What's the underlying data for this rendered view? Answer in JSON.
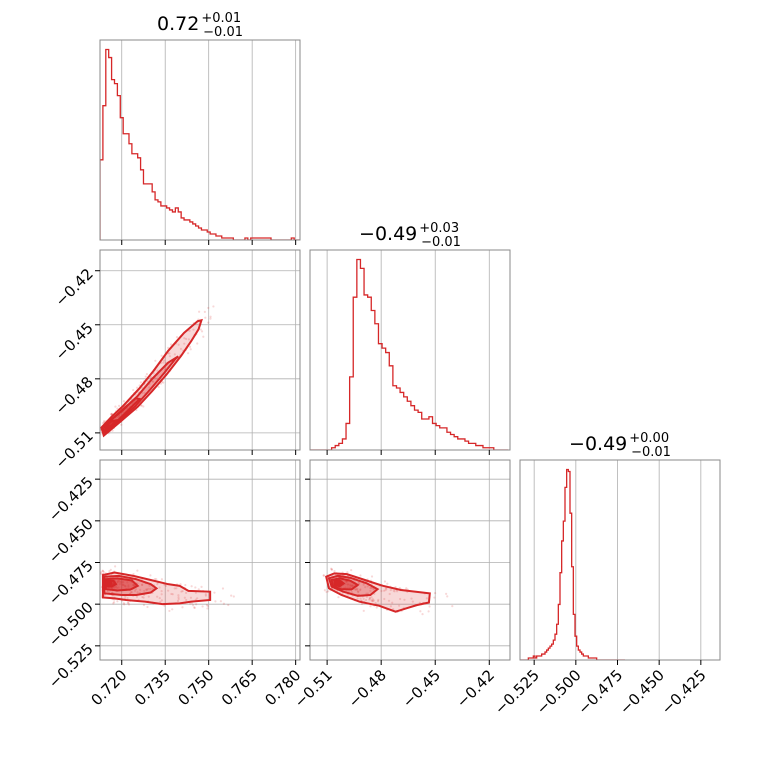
{
  "chart_data": {
    "type": "corner",
    "color": "#d62728",
    "grid": true,
    "parameters": [
      {
        "range": [
          0.7125,
          0.7815
        ],
        "ticks": [
          0.72,
          0.735,
          0.75,
          0.765,
          0.78
        ],
        "tick_labels": [
          "0.720",
          "0.735",
          "0.750",
          "0.765",
          "0.780"
        ],
        "title": {
          "value": "0.72",
          "upper": "+0.01",
          "lower": "−0.01"
        }
      },
      {
        "range": [
          -0.5195,
          -0.4085
        ],
        "ticks": [
          -0.51,
          -0.48,
          -0.45,
          -0.42
        ],
        "tick_labels": [
          "−0.51",
          "−0.48",
          "−0.45",
          "−0.42"
        ],
        "title": {
          "value": "−0.49",
          "upper": "+0.03",
          "lower": "−0.01"
        }
      },
      {
        "range": [
          -0.5335,
          -0.4135
        ],
        "ticks": [
          -0.525,
          -0.5,
          -0.475,
          -0.45,
          -0.425
        ],
        "tick_labels": [
          "−0.525",
          "−0.500",
          "−0.475",
          "−0.450",
          "−0.425"
        ],
        "title": {
          "value": "−0.49",
          "upper": "+0.00",
          "lower": "−0.01"
        }
      }
    ],
    "histograms": [
      {
        "parameter": 0,
        "bin_edges": [
          0.7125,
          0.7135,
          0.7145,
          0.7155,
          0.7165,
          0.7175,
          0.7185,
          0.7195,
          0.7205,
          0.7215,
          0.7225,
          0.7235,
          0.7245,
          0.7255,
          0.7265,
          0.7275,
          0.7285,
          0.7295,
          0.7305,
          0.7315,
          0.7325,
          0.7335,
          0.7345,
          0.7355,
          0.7365,
          0.7375,
          0.7385,
          0.7395,
          0.7405,
          0.7415,
          0.7425,
          0.7435,
          0.7445,
          0.7455,
          0.7465,
          0.7475,
          0.7485,
          0.7495,
          0.7505,
          0.7515,
          0.7525,
          0.7535,
          0.7545,
          0.7555,
          0.7565,
          0.7575,
          0.7585,
          0.7595,
          0.7605,
          0.7615,
          0.7625,
          0.7635,
          0.7645,
          0.7655,
          0.7665,
          0.7675,
          0.7685,
          0.7695,
          0.7705,
          0.7715,
          0.7725,
          0.7735,
          0.7745,
          0.7755,
          0.7765,
          0.7775,
          0.7785,
          0.7795,
          0.7805,
          0.7815
        ],
        "counts": [
          40,
          67,
          95,
          91,
          80,
          78,
          72,
          61,
          53,
          53,
          48,
          43,
          43,
          41,
          35,
          28,
          28,
          28,
          24,
          20,
          19,
          17,
          17,
          16,
          15,
          14,
          16,
          14,
          11,
          10,
          10,
          9,
          8,
          7,
          6,
          5,
          5,
          4,
          3,
          3,
          2,
          2,
          1,
          1,
          1,
          1,
          0,
          0,
          0,
          0,
          1,
          0,
          1,
          1,
          1,
          1,
          1,
          1,
          1,
          0,
          0,
          0,
          0,
          0,
          0,
          0,
          1,
          0,
          0
        ]
      },
      {
        "parameter": 1,
        "bin_edges": [
          -0.5195,
          -0.5175,
          -0.5155,
          -0.5135,
          -0.5115,
          -0.5095,
          -0.5075,
          -0.5055,
          -0.5035,
          -0.5015,
          -0.4995,
          -0.4975,
          -0.4955,
          -0.4935,
          -0.4915,
          -0.4895,
          -0.4875,
          -0.4855,
          -0.4835,
          -0.4815,
          -0.4795,
          -0.4775,
          -0.4755,
          -0.4735,
          -0.4715,
          -0.4695,
          -0.4675,
          -0.4655,
          -0.4635,
          -0.4615,
          -0.4595,
          -0.4575,
          -0.4555,
          -0.4535,
          -0.4515,
          -0.4495,
          -0.4475,
          -0.4455,
          -0.4435,
          -0.4415,
          -0.4395,
          -0.4375,
          -0.4355,
          -0.4335,
          -0.4315,
          -0.4295,
          -0.4275,
          -0.4255,
          -0.4235,
          -0.4215,
          -0.4195,
          -0.4175,
          -0.4155,
          -0.4135,
          -0.4115,
          -0.4095
        ],
        "counts": [
          0,
          0,
          0,
          0,
          0,
          0,
          1,
          2,
          3,
          5,
          12,
          33,
          69,
          86,
          82,
          70,
          69,
          63,
          57,
          48,
          46,
          44,
          38,
          29,
          28,
          26,
          24,
          22,
          20,
          18,
          17,
          14,
          14,
          15,
          12,
          11,
          10,
          10,
          8,
          7,
          6,
          5,
          5,
          4,
          3,
          3,
          2,
          2,
          1,
          1,
          1,
          0,
          0,
          0,
          0
        ]
      },
      {
        "parameter": 2,
        "bin_edges": [
          -0.5335,
          -0.5325,
          -0.5315,
          -0.5305,
          -0.5295,
          -0.5285,
          -0.5275,
          -0.5265,
          -0.5255,
          -0.5245,
          -0.5235,
          -0.5225,
          -0.5215,
          -0.5205,
          -0.5195,
          -0.5185,
          -0.5175,
          -0.5165,
          -0.5155,
          -0.5145,
          -0.5135,
          -0.5125,
          -0.5115,
          -0.5105,
          -0.5095,
          -0.5085,
          -0.5075,
          -0.5065,
          -0.5055,
          -0.5045,
          -0.5035,
          -0.5025,
          -0.5015,
          -0.5005,
          -0.4995,
          -0.4985,
          -0.4975,
          -0.4965,
          -0.4955,
          -0.4945,
          -0.4935,
          -0.4925,
          -0.4915,
          -0.4905,
          -0.4895,
          -0.4885,
          -0.4875,
          -0.4865,
          -0.4855,
          -0.4845,
          -0.4835,
          -0.4825,
          -0.4815,
          -0.4805,
          -0.4795,
          -0.4785,
          -0.4775,
          -0.4765,
          -0.4755,
          -0.4745,
          -0.4735,
          -0.4725,
          -0.4715,
          -0.4705
        ],
        "counts": [
          0,
          0,
          0,
          0,
          0,
          1,
          1,
          1,
          2,
          1,
          2,
          2,
          2,
          3,
          3,
          4,
          5,
          6,
          7,
          8,
          10,
          13,
          18,
          28,
          44,
          60,
          70,
          87,
          96,
          95,
          74,
          47,
          23,
          12,
          7,
          5,
          4,
          3,
          2,
          2,
          2,
          1,
          1,
          1,
          1,
          1,
          0,
          0,
          0,
          0,
          0,
          0,
          0,
          0,
          0,
          0,
          0,
          0,
          0,
          0,
          0,
          0,
          0
        ]
      }
    ],
    "pairs": [
      {
        "x_param": 0,
        "y_param": 1,
        "peak": [
          0.7152,
          -0.5072
        ],
        "contours": [
          [
            [
              0.7138,
              -0.5115
            ],
            [
              0.7195,
              -0.5038
            ],
            [
              0.7255,
              -0.4955
            ],
            [
              0.7305,
              -0.4868
            ],
            [
              0.7355,
              -0.4775
            ],
            [
              0.7405,
              -0.4672
            ],
            [
              0.744,
              -0.459
            ],
            [
              0.7465,
              -0.4525
            ],
            [
              0.7475,
              -0.4475
            ],
            [
              0.7462,
              -0.448
            ],
            [
              0.7415,
              -0.4545
            ],
            [
              0.736,
              -0.4645
            ],
            [
              0.731,
              -0.4755
            ],
            [
              0.726,
              -0.4855
            ],
            [
              0.7205,
              -0.495
            ],
            [
              0.7165,
              -0.501
            ],
            [
              0.713,
              -0.507
            ]
          ],
          [
            [
              0.7142,
              -0.51
            ],
            [
              0.719,
              -0.5035
            ],
            [
              0.7248,
              -0.495
            ],
            [
              0.7298,
              -0.486
            ],
            [
              0.7348,
              -0.4765
            ],
            [
              0.7385,
              -0.469
            ],
            [
              0.7395,
              -0.4675
            ],
            [
              0.736,
              -0.471
            ],
            [
              0.7305,
              -0.48
            ],
            [
              0.7255,
              -0.4895
            ],
            [
              0.7205,
              -0.4972
            ],
            [
              0.7162,
              -0.503
            ],
            [
              0.7134,
              -0.5068
            ]
          ],
          [
            [
              0.7146,
              -0.509
            ],
            [
              0.7186,
              -0.5032
            ],
            [
              0.723,
              -0.4962
            ],
            [
              0.7262,
              -0.4912
            ],
            [
              0.7248,
              -0.4908
            ],
            [
              0.721,
              -0.496
            ],
            [
              0.7168,
              -0.502
            ],
            [
              0.714,
              -0.506
            ]
          ],
          [
            [
              0.7148,
              -0.5085
            ],
            [
              0.7172,
              -0.5048
            ],
            [
              0.7182,
              -0.503
            ],
            [
              0.7165,
              -0.5035
            ],
            [
              0.7146,
              -0.5062
            ]
          ]
        ]
      },
      {
        "x_param": 0,
        "y_param": 2,
        "peak": [
          0.7155,
          -0.4875
        ],
        "contours": [
          [
            [
              0.7135,
              -0.496
            ],
            [
              0.7135,
              -0.4825
            ],
            [
              0.7175,
              -0.481
            ],
            [
              0.724,
              -0.483
            ],
            [
              0.73,
              -0.4855
            ],
            [
              0.736,
              -0.488
            ],
            [
              0.74,
              -0.489
            ],
            [
              0.743,
              -0.492
            ],
            [
              0.7505,
              -0.4925
            ],
            [
              0.7505,
              -0.4975
            ],
            [
              0.744,
              -0.4985
            ],
            [
              0.74,
              -0.4995
            ],
            [
              0.734,
              -0.5
            ],
            [
              0.728,
              -0.4985
            ],
            [
              0.7215,
              -0.4975
            ],
            [
              0.7175,
              -0.4965
            ]
          ],
          [
            [
              0.714,
              -0.4935
            ],
            [
              0.714,
              -0.4835
            ],
            [
              0.719,
              -0.483
            ],
            [
              0.725,
              -0.485
            ],
            [
              0.73,
              -0.488
            ],
            [
              0.732,
              -0.4905
            ],
            [
              0.73,
              -0.493
            ],
            [
              0.725,
              -0.4945
            ],
            [
              0.72,
              -0.4945
            ]
          ],
          [
            [
              0.7145,
              -0.491
            ],
            [
              0.7145,
              -0.485
            ],
            [
              0.7185,
              -0.4845
            ],
            [
              0.7235,
              -0.4858
            ],
            [
              0.7255,
              -0.489
            ],
            [
              0.723,
              -0.4912
            ],
            [
              0.7185,
              -0.4918
            ]
          ],
          [
            [
              0.7148,
              -0.4895
            ],
            [
              0.715,
              -0.486
            ],
            [
              0.7172,
              -0.486
            ],
            [
              0.718,
              -0.488
            ],
            [
              0.7165,
              -0.4895
            ]
          ]
        ]
      },
      {
        "x_param": 1,
        "y_param": 2,
        "peak": [
          -0.5035,
          -0.4875
        ],
        "contours": [
          [
            [
              -0.5105,
              -0.4835
            ],
            [
              -0.506,
              -0.4815
            ],
            [
              -0.499,
              -0.482
            ],
            [
              -0.489,
              -0.4855
            ],
            [
              -0.479,
              -0.489
            ],
            [
              -0.469,
              -0.4915
            ],
            [
              -0.453,
              -0.4935
            ],
            [
              -0.4535,
              -0.499
            ],
            [
              -0.46,
              -0.5005
            ],
            [
              -0.466,
              -0.5025
            ],
            [
              -0.472,
              -0.5045
            ],
            [
              -0.481,
              -0.501
            ],
            [
              -0.492,
              -0.4985
            ],
            [
              -0.502,
              -0.4945
            ],
            [
              -0.509,
              -0.4905
            ]
          ],
          [
            [
              -0.509,
              -0.4845
            ],
            [
              -0.504,
              -0.483
            ],
            [
              -0.497,
              -0.4842
            ],
            [
              -0.488,
              -0.4875
            ],
            [
              -0.482,
              -0.491
            ],
            [
              -0.486,
              -0.4945
            ],
            [
              -0.493,
              -0.495
            ],
            [
              -0.501,
              -0.4925
            ],
            [
              -0.5075,
              -0.4895
            ]
          ],
          [
            [
              -0.5075,
              -0.4855
            ],
            [
              -0.503,
              -0.4845
            ],
            [
              -0.497,
              -0.486
            ],
            [
              -0.493,
              -0.4885
            ],
            [
              -0.4965,
              -0.4912
            ],
            [
              -0.5025,
              -0.491
            ],
            [
              -0.5068,
              -0.489
            ]
          ],
          [
            [
              -0.506,
              -0.4862
            ],
            [
              -0.503,
              -0.4858
            ],
            [
              -0.5008,
              -0.4875
            ],
            [
              -0.503,
              -0.4892
            ],
            [
              -0.5058,
              -0.4885
            ]
          ]
        ]
      }
    ]
  }
}
